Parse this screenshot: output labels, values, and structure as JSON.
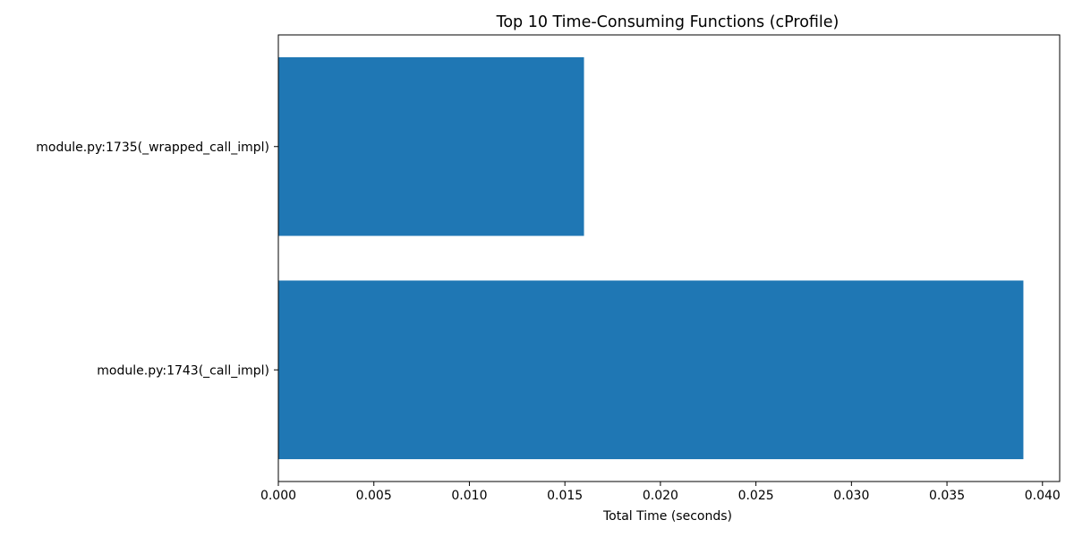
{
  "chart_data": {
    "type": "bar",
    "orientation": "horizontal",
    "title": "Top 10 Time-Consuming Functions (cProfile)",
    "xlabel": "Total Time (seconds)",
    "ylabel": "",
    "categories": [
      "module.py:1743(_call_impl)",
      "module.py:1735(_wrapped_call_impl)"
    ],
    "values": [
      0.039,
      0.016
    ],
    "xlim": [
      0.0,
      0.0409
    ],
    "x_ticks": [
      0.0,
      0.005,
      0.01,
      0.015,
      0.02,
      0.025,
      0.03,
      0.035,
      0.04
    ],
    "x_tick_labels": [
      "0.000",
      "0.005",
      "0.010",
      "0.015",
      "0.020",
      "0.025",
      "0.030",
      "0.035",
      "0.040"
    ],
    "bar_color": "#1f77b4",
    "grid": false,
    "legend": "none"
  }
}
